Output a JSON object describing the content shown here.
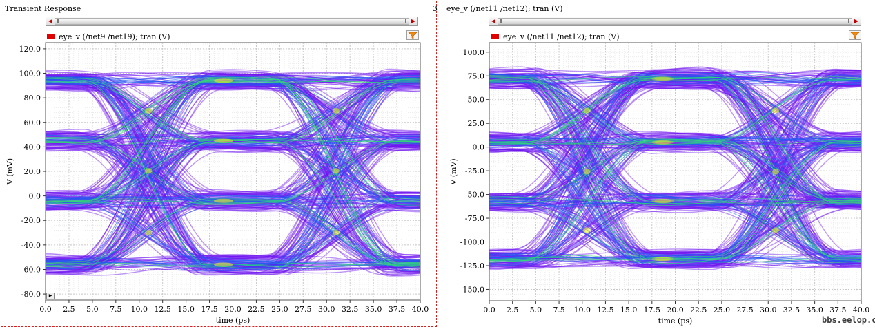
{
  "panels": [
    {
      "title": "Transient Response",
      "page_number": "3",
      "legend_label": "eye_v (/net9 /net19); tran (V)",
      "legend_color": "#e00000"
    },
    {
      "title": "eye_v (/net11 /net12); tran (V)",
      "page_number": "",
      "legend_label": "eye_v (/net11 /net12); tran (V)",
      "legend_color": "#e00000"
    }
  ],
  "watermark": "bbs.eelop.cn",
  "colors": {
    "eye_base": "#6f14f0",
    "eye_mid": "#1f5cf0",
    "eye_hot": "#2fe070",
    "eye_peak": "#f0f020",
    "grid": "#d9d9d9"
  },
  "chart_data": [
    {
      "type": "line",
      "description_kind": "eye diagram density",
      "xlabel": "time (ps)",
      "ylabel": "V (mV)",
      "xlim": [
        0,
        40
      ],
      "ylim": [
        -85,
        125
      ],
      "x_ticks": [
        "0.0",
        "2.5",
        "5.0",
        "7.5",
        "10.0",
        "12.5",
        "15.0",
        "17.5",
        "20.0",
        "22.5",
        "25.0",
        "27.5",
        "30.0",
        "32.5",
        "35.0",
        "37.5",
        "40.0"
      ],
      "y_ticks": [
        "120.0",
        "100.0",
        "80.0",
        "60.0",
        "40.0",
        "20.0",
        "0.0",
        "-20.0",
        "-40.0",
        "-60.0",
        "-80.0"
      ],
      "x_tick_values": [
        0,
        2.5,
        5,
        7.5,
        10,
        12.5,
        15,
        17.5,
        20,
        22.5,
        25,
        27.5,
        30,
        32.5,
        35,
        37.5,
        40
      ],
      "y_tick_values": [
        120,
        100,
        80,
        60,
        40,
        20,
        0,
        -20,
        -40,
        -60,
        -80
      ],
      "levels": [
        94,
        45,
        -4,
        -56
      ],
      "crossings": [
        11,
        31
      ],
      "symbol_period_ps": 20
    },
    {
      "type": "line",
      "description_kind": "eye diagram density",
      "xlabel": "time (ps)",
      "ylabel": "V (mV)",
      "xlim": [
        0,
        40
      ],
      "ylim": [
        -162,
        110
      ],
      "x_ticks": [
        "0.0",
        "2.5",
        "5.0",
        "7.5",
        "10.0",
        "12.5",
        "15.0",
        "17.5",
        "20.0",
        "22.5",
        "25.0",
        "27.5",
        "30.0",
        "32.5",
        "35.0",
        "37.5",
        "40.0"
      ],
      "y_ticks": [
        "100.0",
        "75.0",
        "50.0",
        "25.0",
        "0.0",
        "-25.0",
        "-50.0",
        "-75.0",
        "-100.0",
        "-125.0",
        "-150.0"
      ],
      "x_tick_values": [
        0,
        2.5,
        5,
        7.5,
        10,
        12.5,
        15,
        17.5,
        20,
        22.5,
        25,
        27.5,
        30,
        32.5,
        35,
        37.5,
        40
      ],
      "y_tick_values": [
        100,
        75,
        50,
        25,
        0,
        -25,
        -50,
        -75,
        -100,
        -125,
        -150
      ],
      "levels": [
        72,
        5,
        -57,
        -118
      ],
      "crossings": [
        10.5,
        30.8
      ],
      "symbol_period_ps": 20
    }
  ]
}
